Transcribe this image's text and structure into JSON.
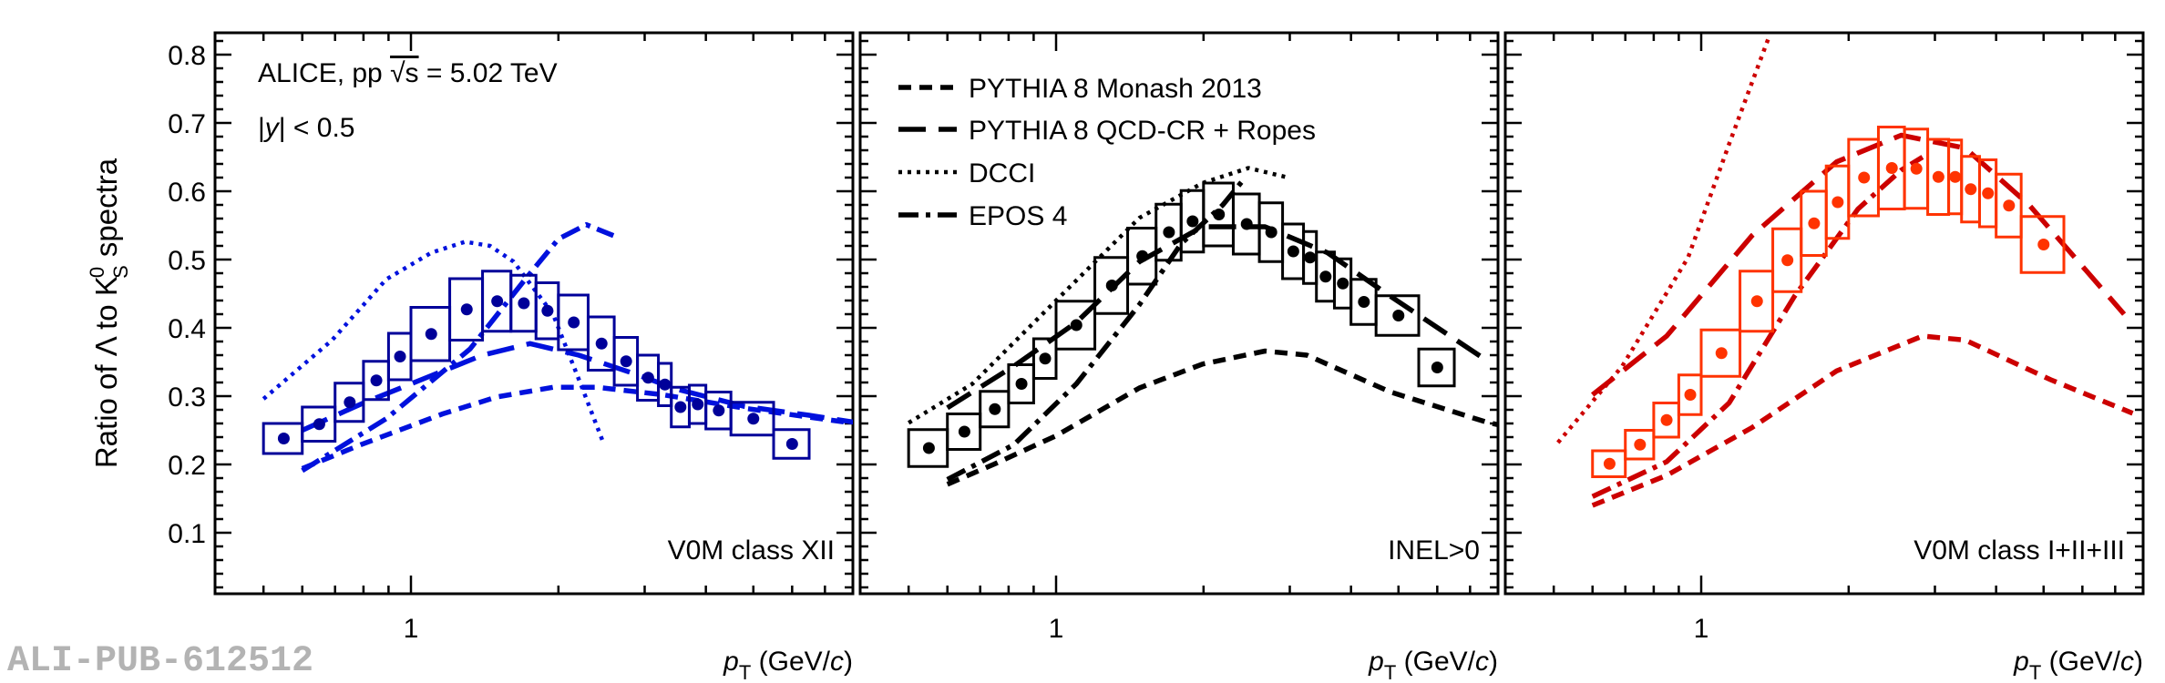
{
  "watermark": "ALI-PUB-612512",
  "annotations": {
    "experiment": "ALICE, pp ",
    "sqrt_s": "√s",
    "energy": " = 5.02 TeV",
    "rapidity_pre": "|",
    "rapidity_var": "y",
    "rapidity_post": "| < 0.5"
  },
  "legend": [
    {
      "label": "PYTHIA 8 Monash 2013",
      "style": "short-dash"
    },
    {
      "label": "PYTHIA 8 QCD-CR + Ropes",
      "style": "long-dash"
    },
    {
      "label": "DCCI",
      "style": "dotted"
    },
    {
      "label": "EPOS 4",
      "style": "dash-dot"
    }
  ],
  "axes": {
    "ylabel": {
      "main": "Ratio of Λ to K",
      "sup": "0",
      "sub": "S",
      "tail": " spectra"
    },
    "xlabel": {
      "var": "p",
      "sub": "T",
      "unit_pre": " (GeV/",
      "unit_var": "c",
      "unit_post": ")"
    },
    "yticks": [
      "0.1",
      "0.2",
      "0.3",
      "0.4",
      "0.5",
      "0.6",
      "0.7",
      "0.8"
    ],
    "xticks": [
      "1"
    ],
    "xscale": "log",
    "xlim": [
      0.4,
      8.0
    ],
    "ylim": [
      0.01,
      0.83
    ]
  },
  "chart_data": [
    {
      "type": "scatter",
      "panel_label": "V0M class XII",
      "colors": {
        "data": "#000099",
        "models": "#0011dd"
      },
      "data": {
        "x": [
          0.55,
          0.65,
          0.75,
          0.85,
          0.95,
          1.1,
          1.3,
          1.5,
          1.7,
          1.9,
          2.15,
          2.45,
          2.75,
          3.05,
          3.3,
          3.55,
          3.85,
          4.25,
          5.0,
          6.0
        ],
        "x_low": [
          0.5,
          0.6,
          0.7,
          0.8,
          0.9,
          1.0,
          1.2,
          1.4,
          1.6,
          1.8,
          2.0,
          2.3,
          2.6,
          2.9,
          3.2,
          3.4,
          3.7,
          4.0,
          4.5,
          5.5
        ],
        "x_high": [
          0.6,
          0.7,
          0.8,
          0.9,
          1.0,
          1.2,
          1.4,
          1.6,
          1.8,
          2.0,
          2.3,
          2.6,
          2.9,
          3.2,
          3.4,
          3.7,
          4.0,
          4.5,
          5.5,
          6.5
        ],
        "y": [
          0.238,
          0.259,
          0.291,
          0.323,
          0.358,
          0.391,
          0.427,
          0.439,
          0.436,
          0.425,
          0.408,
          0.377,
          0.351,
          0.327,
          0.317,
          0.284,
          0.288,
          0.279,
          0.267,
          0.23
        ],
        "syst": [
          0.022,
          0.025,
          0.028,
          0.028,
          0.034,
          0.039,
          0.045,
          0.044,
          0.041,
          0.041,
          0.04,
          0.039,
          0.035,
          0.033,
          0.031,
          0.029,
          0.028,
          0.027,
          0.024,
          0.021
        ]
      },
      "models": [
        {
          "name": "PYTHIA 8 Monash 2013",
          "x": [
            0.6,
            0.79,
            1.16,
            1.5,
            1.95,
            2.4,
            3.27,
            4.83,
            7.7
          ],
          "y": [
            0.194,
            0.229,
            0.274,
            0.299,
            0.313,
            0.313,
            0.302,
            0.282,
            0.262
          ]
        },
        {
          "name": "PYTHIA 8 QCD-CR + Ropes",
          "x": [
            0.6,
            0.8,
            1.1,
            1.4,
            1.75,
            2.2,
            2.8,
            3.5,
            4.8,
            6.5,
            8.0
          ],
          "y": [
            0.25,
            0.29,
            0.33,
            0.36,
            0.377,
            0.36,
            0.335,
            0.31,
            0.285,
            0.272,
            0.262
          ]
        },
        {
          "name": "DCCI",
          "x": [
            0.5,
            0.69,
            0.89,
            1.1,
            1.29,
            1.45,
            1.62,
            1.95,
            2.22,
            2.46
          ],
          "y": [
            0.296,
            0.382,
            0.471,
            0.51,
            0.526,
            0.52,
            0.497,
            0.42,
            0.318,
            0.235
          ]
        },
        {
          "name": "EPOS 4",
          "x": [
            0.6,
            0.89,
            1.32,
            1.71,
            2.0,
            2.28,
            2.59
          ],
          "y": [
            0.191,
            0.267,
            0.369,
            0.471,
            0.53,
            0.551,
            0.535
          ]
        }
      ]
    },
    {
      "type": "scatter",
      "panel_label": "INEL>0",
      "colors": {
        "data": "#000000",
        "models": "#000000"
      },
      "data": {
        "x": [
          0.55,
          0.65,
          0.75,
          0.85,
          0.95,
          1.1,
          1.3,
          1.5,
          1.7,
          1.9,
          2.15,
          2.45,
          2.75,
          3.05,
          3.3,
          3.55,
          3.85,
          4.25,
          5.0,
          6.0
        ],
        "x_low": [
          0.5,
          0.6,
          0.7,
          0.8,
          0.9,
          1.0,
          1.2,
          1.4,
          1.6,
          1.8,
          2.0,
          2.3,
          2.6,
          2.9,
          3.2,
          3.4,
          3.7,
          4.0,
          4.5,
          5.5
        ],
        "x_high": [
          0.6,
          0.7,
          0.8,
          0.9,
          1.0,
          1.2,
          1.4,
          1.6,
          1.8,
          2.0,
          2.3,
          2.6,
          2.9,
          3.2,
          3.4,
          3.7,
          4.0,
          4.5,
          5.5,
          6.5
        ],
        "y": [
          0.224,
          0.248,
          0.281,
          0.318,
          0.355,
          0.404,
          0.462,
          0.505,
          0.54,
          0.556,
          0.566,
          0.552,
          0.54,
          0.512,
          0.503,
          0.475,
          0.465,
          0.438,
          0.418,
          0.342
        ],
        "syst": [
          0.027,
          0.026,
          0.026,
          0.028,
          0.029,
          0.035,
          0.041,
          0.041,
          0.041,
          0.045,
          0.046,
          0.044,
          0.043,
          0.04,
          0.038,
          0.036,
          0.036,
          0.033,
          0.029,
          0.027
        ]
      },
      "models": [
        {
          "name": "PYTHIA 8 Monash 2013",
          "x": [
            0.6,
            0.745,
            1.0,
            1.48,
            1.99,
            2.67,
            3.25,
            4.82,
            7.56,
            8.0
          ],
          "y": [
            0.171,
            0.2,
            0.242,
            0.312,
            0.347,
            0.366,
            0.36,
            0.306,
            0.262,
            0.258
          ]
        },
        {
          "name": "PYTHIA 8 QCD-CR + Ropes",
          "x": [
            0.6,
            0.82,
            1.1,
            1.48,
            1.99,
            2.67,
            3.58,
            4.82,
            7.4
          ],
          "y": [
            0.283,
            0.344,
            0.408,
            0.497,
            0.548,
            0.548,
            0.51,
            0.446,
            0.357
          ]
        },
        {
          "name": "DCCI",
          "x": [
            0.5,
            0.675,
            1.0,
            1.48,
            1.99,
            2.47,
            2.94
          ],
          "y": [
            0.261,
            0.318,
            0.44,
            0.561,
            0.612,
            0.634,
            0.621
          ]
        },
        {
          "name": "EPOS 4",
          "x": [
            0.6,
            0.82,
            1.1,
            1.48,
            1.8,
            2.19,
            2.42
          ],
          "y": [
            0.178,
            0.229,
            0.318,
            0.434,
            0.523,
            0.58,
            0.618
          ]
        }
      ]
    },
    {
      "type": "scatter",
      "panel_label": "V0M class I+II+III",
      "colors": {
        "data": "#ff3300",
        "models": "#cc0000"
      },
      "data": {
        "x": [
          0.65,
          0.75,
          0.85,
          0.95,
          1.1,
          1.3,
          1.5,
          1.7,
          1.9,
          2.15,
          2.45,
          2.75,
          3.05,
          3.3,
          3.55,
          3.85,
          4.25,
          5.0
        ],
        "x_low": [
          0.6,
          0.7,
          0.8,
          0.9,
          1.0,
          1.2,
          1.4,
          1.6,
          1.8,
          2.0,
          2.3,
          2.6,
          2.9,
          3.2,
          3.4,
          3.7,
          4.0,
          4.5
        ],
        "x_high": [
          0.7,
          0.8,
          0.9,
          1.0,
          1.2,
          1.4,
          1.6,
          1.8,
          2.0,
          2.3,
          2.6,
          2.9,
          3.2,
          3.4,
          3.7,
          4.0,
          4.5,
          5.5
        ],
        "y": [
          0.201,
          0.229,
          0.265,
          0.302,
          0.363,
          0.439,
          0.499,
          0.553,
          0.584,
          0.62,
          0.634,
          0.633,
          0.621,
          0.621,
          0.603,
          0.597,
          0.579,
          0.522
        ],
        "syst": [
          0.019,
          0.021,
          0.025,
          0.029,
          0.034,
          0.044,
          0.046,
          0.047,
          0.053,
          0.056,
          0.06,
          0.058,
          0.055,
          0.054,
          0.048,
          0.049,
          0.046,
          0.041
        ]
      },
      "models": [
        {
          "name": "PYTHIA 8 Monash 2013",
          "x": [
            0.6,
            0.85,
            1.27,
            1.89,
            2.83,
            3.46,
            5.17,
            7.6
          ],
          "y": [
            0.14,
            0.184,
            0.254,
            0.337,
            0.388,
            0.382,
            0.324,
            0.275
          ]
        },
        {
          "name": "PYTHIA 8 QCD-CR + Ropes",
          "x": [
            0.6,
            0.85,
            1.27,
            1.89,
            2.56,
            3.46,
            4.67,
            7.3
          ],
          "y": [
            0.302,
            0.388,
            0.535,
            0.643,
            0.682,
            0.663,
            0.58,
            0.42
          ]
        },
        {
          "name": "DCCI",
          "x": [
            0.51,
            0.69,
            0.94,
            1.14,
            1.38
          ],
          "y": [
            0.232,
            0.344,
            0.503,
            0.669,
            0.829
          ]
        },
        {
          "name": "EPOS 4",
          "x": [
            0.6,
            0.85,
            1.14,
            1.55,
            2.09,
            2.56,
            2.83
          ],
          "y": [
            0.153,
            0.204,
            0.29,
            0.446,
            0.574,
            0.631,
            0.65
          ]
        }
      ]
    }
  ]
}
